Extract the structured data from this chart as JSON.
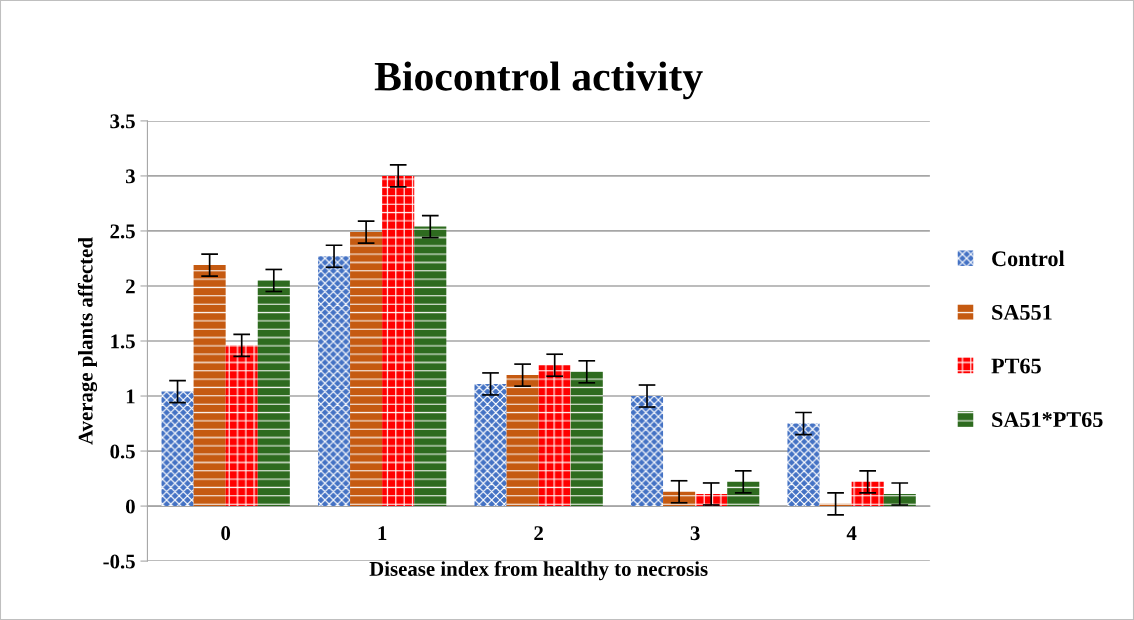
{
  "chart_data": {
    "type": "bar",
    "title": "Biocontrol activity",
    "xlabel": "Disease index from healthy to necrosis",
    "ylabel": "Average plants affected",
    "categories": [
      "0",
      "1",
      "2",
      "3",
      "4"
    ],
    "series": [
      {
        "name": "Control",
        "color": "#4472c4",
        "values": [
          1.04,
          2.27,
          1.11,
          1.0,
          0.75
        ],
        "errors": [
          0.1,
          0.1,
          0.1,
          0.1,
          0.1
        ]
      },
      {
        "name": "SA551",
        "color": "#c55a11",
        "values": [
          2.19,
          2.49,
          1.19,
          0.13,
          0.02
        ],
        "errors": [
          0.1,
          0.1,
          0.1,
          0.1,
          0.1
        ]
      },
      {
        "name": "PT65",
        "color": "#ff0000",
        "values": [
          1.46,
          3.0,
          1.28,
          0.11,
          0.22
        ],
        "errors": [
          0.1,
          0.1,
          0.1,
          0.1,
          0.1
        ]
      },
      {
        "name": "SA51*PT65",
        "color": "#2e6b1f",
        "values": [
          2.05,
          2.54,
          1.22,
          0.22,
          0.11
        ],
        "errors": [
          0.1,
          0.1,
          0.1,
          0.1,
          0.1
        ]
      }
    ],
    "ylim": [
      -0.5,
      3.5
    ],
    "yticks": [
      -0.5,
      0,
      0.5,
      1,
      1.5,
      2,
      2.5,
      3,
      3.5
    ],
    "grid": "y",
    "legend": "right"
  }
}
